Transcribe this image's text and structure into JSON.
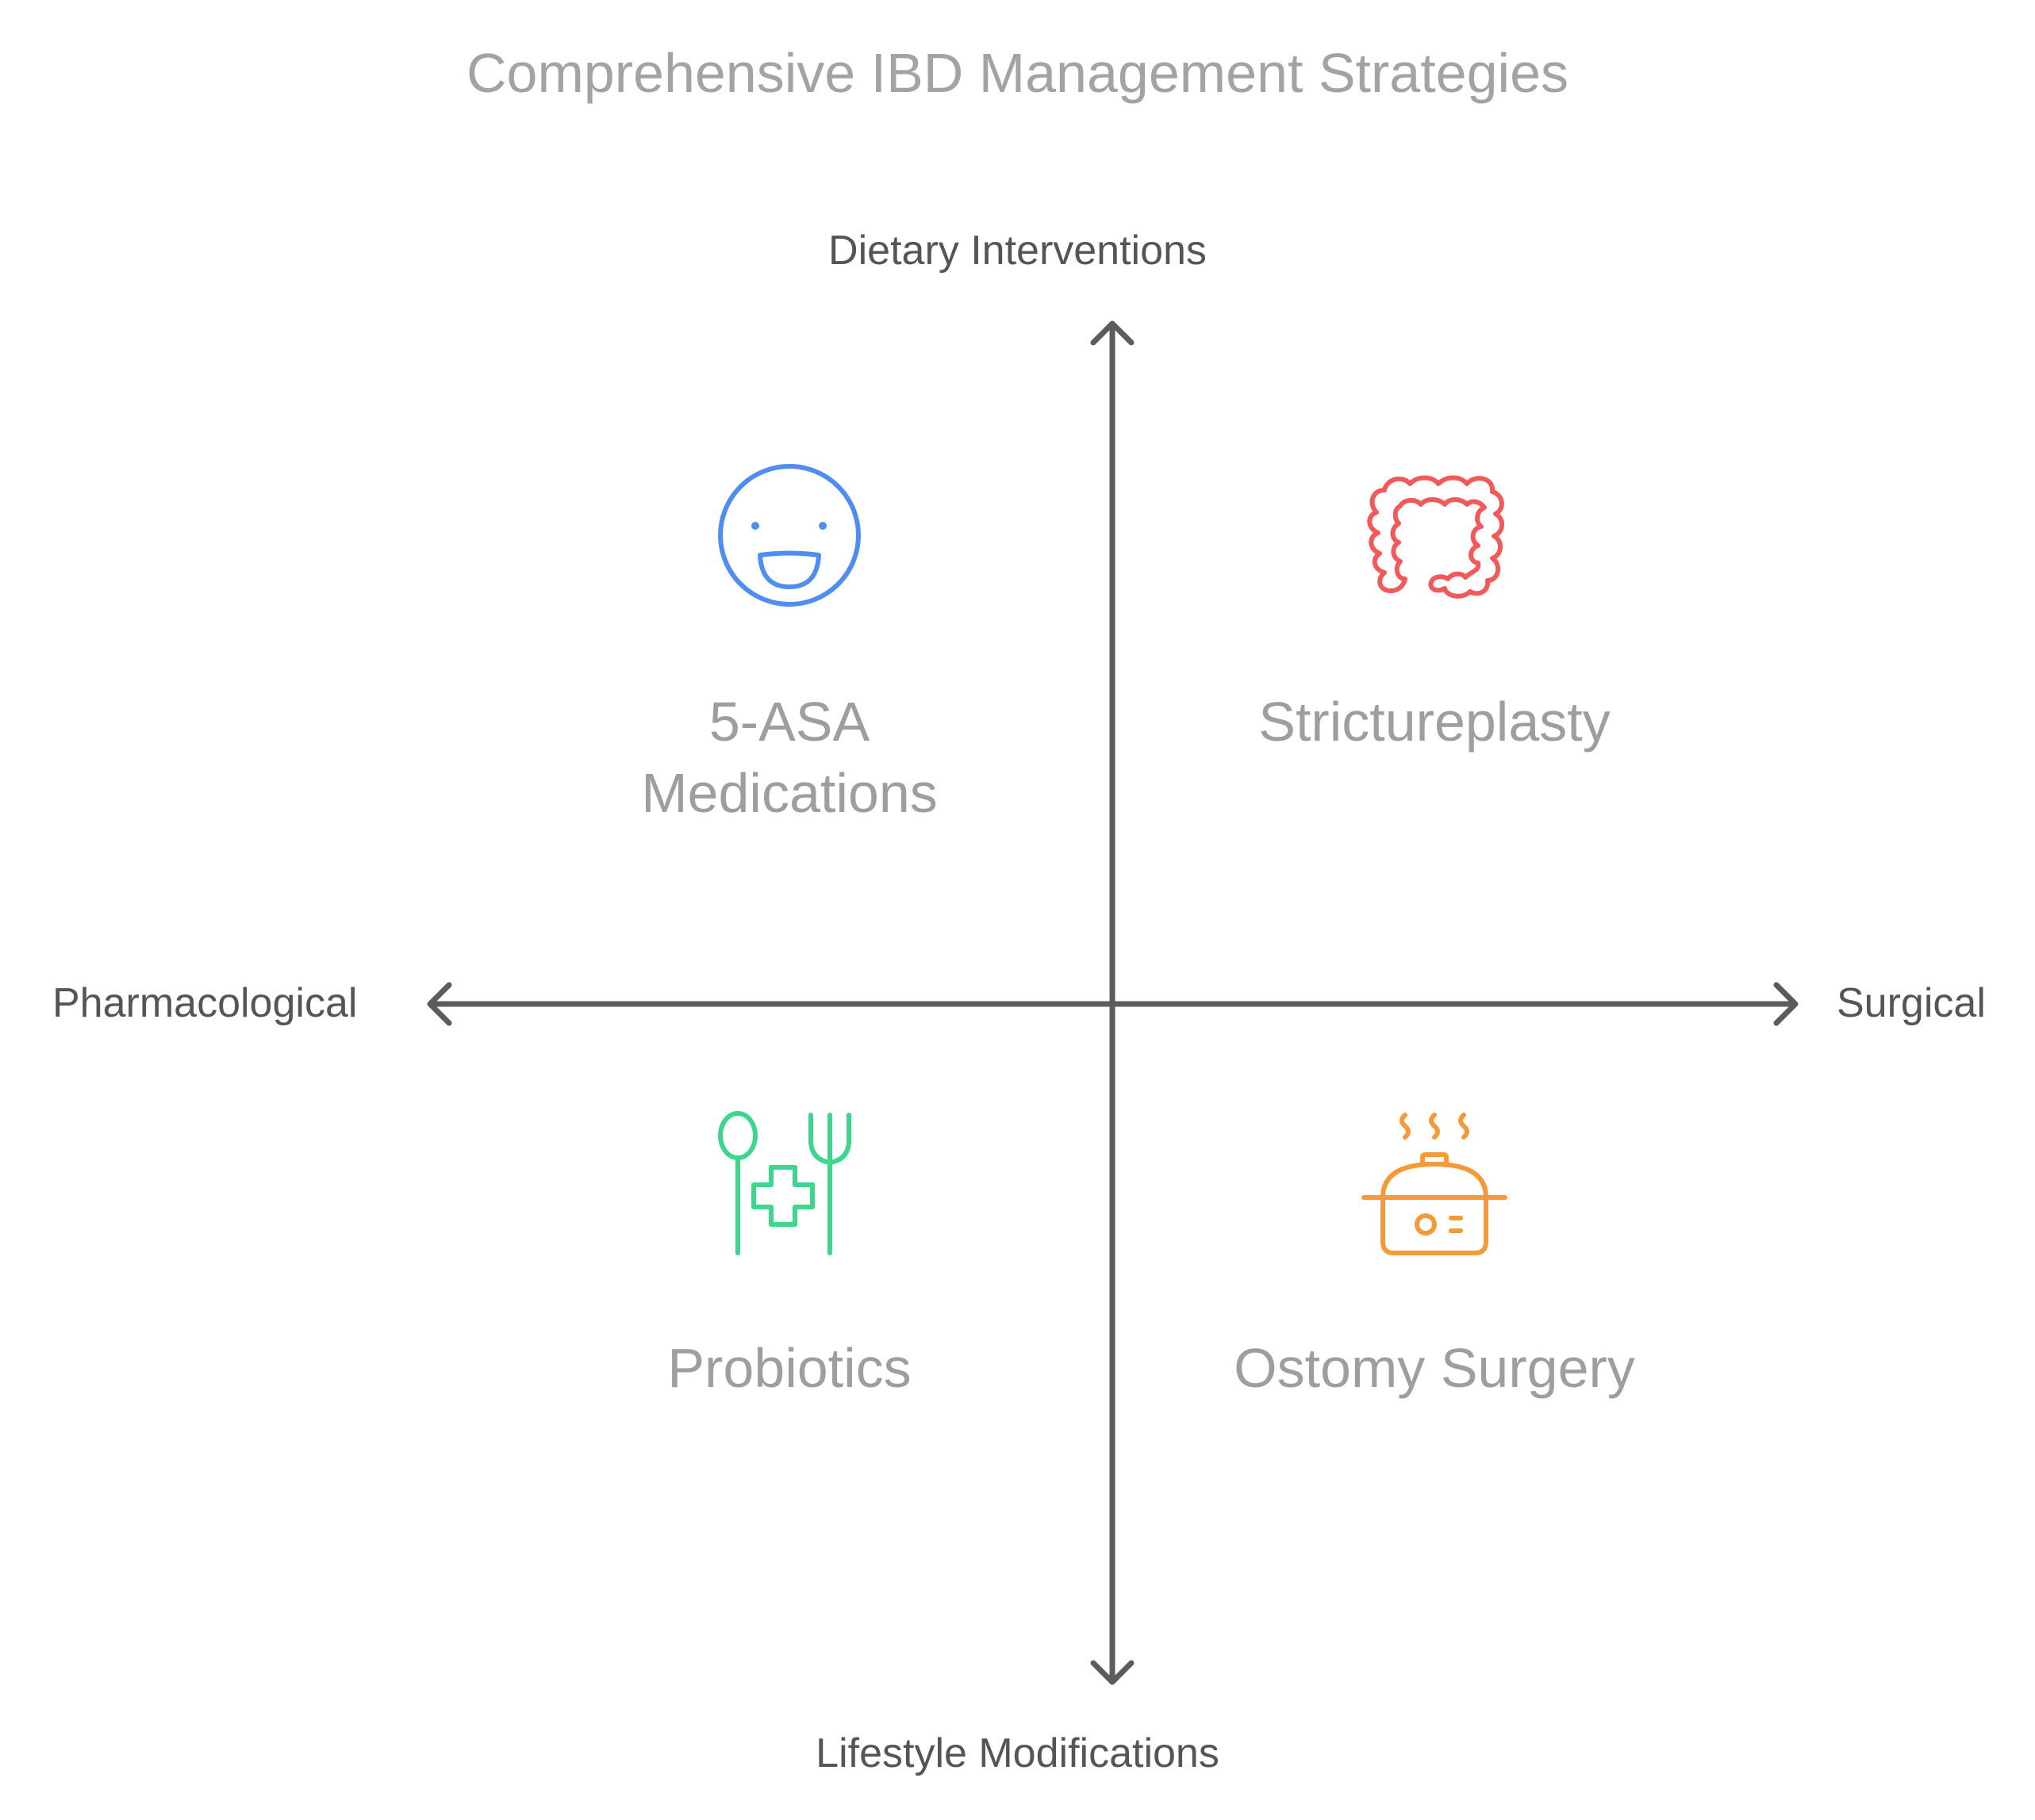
{
  "title": "Comprehensive IBD Management Strategies",
  "axes": {
    "top": "Dietary Interventions",
    "bottom": "Lifestyle Modifications",
    "left": "Pharmacological",
    "right": "Surgical"
  },
  "quadrants": {
    "top_left": {
      "label_line1": "5-ASA",
      "label_line2": "Medications",
      "icon": "smiley-face-icon",
      "color": "#4f8ef0"
    },
    "top_right": {
      "label": "Strictureplasty",
      "icon": "intestine-icon",
      "color": "#f05a5a"
    },
    "bottom_left": {
      "label": "Probiotics",
      "icon": "spoon-fork-medical-cross-icon",
      "color": "#3dd68c"
    },
    "bottom_right": {
      "label": "Ostomy Surgery",
      "icon": "steaming-pot-icon",
      "color": "#f59a3a"
    }
  },
  "colors": {
    "axis": "#5c5c5c",
    "title": "#a3a3a3",
    "axis_label": "#555555",
    "quadrant_label": "#9e9e9e"
  }
}
